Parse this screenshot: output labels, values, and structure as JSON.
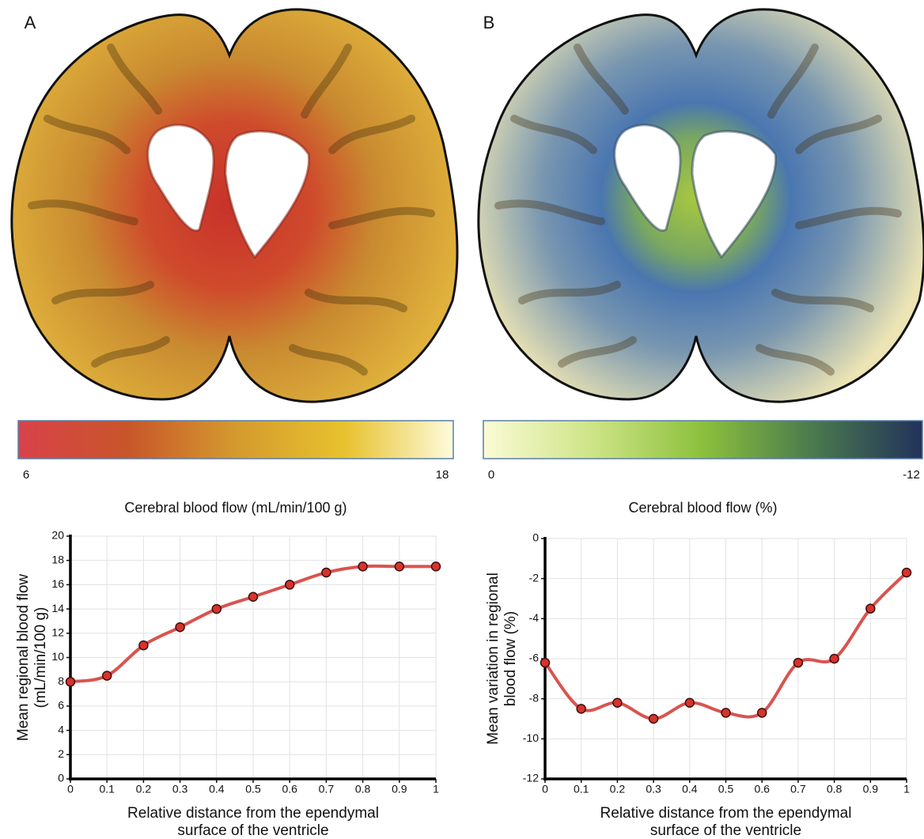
{
  "panels": [
    {
      "label": "A",
      "colorbar": {
        "min": 6,
        "max": 18,
        "title": "Cerebral blood flow (mL/min/100 g)",
        "colors": [
          "#d9424a",
          "#c8552a",
          "#d49a2e",
          "#e8c22e",
          "#fdfbdc"
        ]
      }
    },
    {
      "label": "B",
      "colorbar": {
        "min": 0,
        "max": -12,
        "title": "Cerebral blood flow (%)",
        "colors": [
          "#fbfbd6",
          "#cde486",
          "#8cc03c",
          "#4a7a4e",
          "#22325a"
        ]
      }
    }
  ],
  "chart_data": [
    {
      "type": "line",
      "ylabel": [
        "Mean regional blood flow",
        "(mL/min/100 g)"
      ],
      "xlabel": [
        "Relative distance from the ependymal",
        "surface of the ventricle"
      ],
      "x": [
        0,
        0.1,
        0.2,
        0.3,
        0.4,
        0.5,
        0.6,
        0.7,
        0.8,
        0.9,
        1
      ],
      "series": [
        {
          "color": "#d9534f",
          "values": [
            8,
            8.5,
            11,
            12.5,
            14,
            15,
            16,
            17,
            17.5,
            17.5,
            17.5
          ]
        }
      ],
      "xlim": [
        0,
        1
      ],
      "xticks": [
        0,
        0.1,
        0.2,
        0.3,
        0.4,
        0.5,
        0.6,
        0.7,
        0.8,
        0.9,
        1
      ],
      "ylim": [
        0,
        20
      ],
      "yticks": [
        0,
        2,
        4,
        6,
        8,
        10,
        12,
        14,
        16,
        18,
        20
      ],
      "grid": true
    },
    {
      "type": "line",
      "ylabel": [
        "Mean variation in regional",
        "blood flow (%)"
      ],
      "xlabel": [
        "Relative distance from the ependymal",
        "surface of the ventricle"
      ],
      "x": [
        0,
        0.1,
        0.2,
        0.3,
        0.4,
        0.5,
        0.6,
        0.7,
        0.8,
        0.9,
        1
      ],
      "series": [
        {
          "color": "#d9534f",
          "values": [
            -6.2,
            -8.5,
            -8.2,
            -9,
            -8.2,
            -8.7,
            -8.7,
            -6.2,
            -6,
            -3.5,
            -1.7
          ]
        }
      ],
      "xlim": [
        0,
        1
      ],
      "xticks": [
        0,
        0.1,
        0.2,
        0.3,
        0.4,
        0.5,
        0.6,
        0.7,
        0.8,
        0.9,
        1
      ],
      "ylim": [
        -12,
        0
      ],
      "yticks": [
        0,
        -2,
        -4,
        -6,
        -8,
        -10,
        -12
      ],
      "grid": true
    }
  ]
}
